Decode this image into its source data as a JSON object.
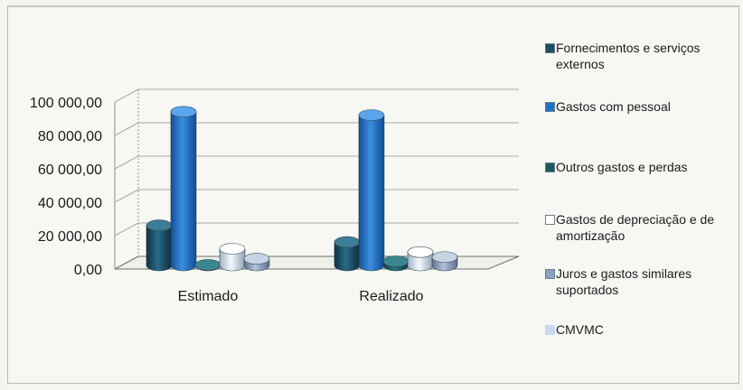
{
  "chart_data": {
    "type": "bar",
    "style": "3d-cylinder",
    "categories": [
      "Estimado",
      "Realizado"
    ],
    "series": [
      {
        "name": "Fornecimentos e serviços externos",
        "color": "#1f5a73",
        "values": [
          24000,
          14000
        ]
      },
      {
        "name": "Gastos com pessoal",
        "color": "#1f71c2",
        "values": [
          92000,
          90000
        ]
      },
      {
        "name": "Outros gastos e perdas",
        "color": "#1d5e66",
        "values": [
          300,
          2500
        ]
      },
      {
        "name": "Gastos de depreciação e de amortização",
        "color": "#dfe8f0",
        "values": [
          10000,
          8000
        ]
      },
      {
        "name": "Juros e gastos similares suportados",
        "color": "#8ea6c3",
        "values": [
          4000,
          5000
        ]
      },
      {
        "name": "CMVMC",
        "color": "#c7d7ef",
        "values": [
          0,
          0
        ]
      }
    ],
    "y_ticks": [
      "0,00",
      "20 000,00",
      "40 000,00",
      "60 000,00",
      "80 000,00",
      "100 000,00"
    ],
    "ylim": [
      0,
      100000
    ],
    "grid": true,
    "legend_position": "right"
  }
}
